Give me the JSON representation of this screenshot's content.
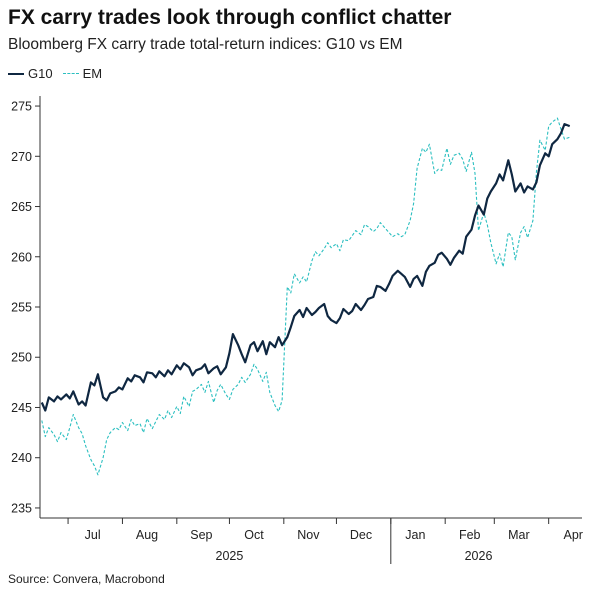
{
  "title": "FX carry trades look through conflict chatter",
  "subtitle": "Bloomberg FX carry trade total-return indices: G10 vs EM",
  "source": "Source: Convera, Macrobond",
  "colors": {
    "g10": "#0f2741",
    "em": "#2bbfc0",
    "axis": "#333333"
  },
  "chart_data": {
    "type": "line",
    "title": "FX carry trades look through conflict chatter",
    "subtitle": "Bloomberg FX carry trade total-return indices: G10 vs EM",
    "ylim": [
      234,
      276
    ],
    "yticks": [
      235,
      240,
      245,
      250,
      255,
      260,
      265,
      270,
      275
    ],
    "xlim": [
      "2025-06-15",
      "2026-04-20"
    ],
    "month_ticks": [
      {
        "date": "2025-07-15",
        "label": "Jul"
      },
      {
        "date": "2025-08-15",
        "label": "Aug"
      },
      {
        "date": "2025-09-15",
        "label": "Sep"
      },
      {
        "date": "2025-10-15",
        "label": "Oct"
      },
      {
        "date": "2025-11-15",
        "label": "Nov"
      },
      {
        "date": "2025-12-15",
        "label": "Dec"
      },
      {
        "date": "2026-01-15",
        "label": "Jan"
      },
      {
        "date": "2026-02-15",
        "label": "Feb"
      },
      {
        "date": "2026-03-15",
        "label": "Mar"
      },
      {
        "date": "2026-04-15",
        "label": "Apr"
      }
    ],
    "month_dividers": [
      "2025-07-01",
      "2025-08-01",
      "2025-09-01",
      "2025-10-01",
      "2025-11-01",
      "2025-12-01",
      "2026-01-01",
      "2026-02-01",
      "2026-03-01",
      "2026-04-01"
    ],
    "year_labels": [
      {
        "date": "2025-10-01",
        "label": "2025"
      },
      {
        "date": "2026-02-20",
        "label": "2026"
      }
    ],
    "grid": false,
    "legend": "top-left",
    "series": [
      {
        "name": "G10",
        "style": "solid",
        "points": [
          [
            "2025-06-16",
            245.5
          ],
          [
            "2025-06-18",
            244.7
          ],
          [
            "2025-06-20",
            246.0
          ],
          [
            "2025-06-23",
            245.6
          ],
          [
            "2025-06-25",
            246.1
          ],
          [
            "2025-06-27",
            245.8
          ],
          [
            "2025-06-30",
            246.3
          ],
          [
            "2025-07-02",
            245.9
          ],
          [
            "2025-07-04",
            246.6
          ],
          [
            "2025-07-07",
            245.3
          ],
          [
            "2025-07-09",
            245.6
          ],
          [
            "2025-07-11",
            245.2
          ],
          [
            "2025-07-14",
            247.5
          ],
          [
            "2025-07-16",
            247.2
          ],
          [
            "2025-07-18",
            248.3
          ],
          [
            "2025-07-21",
            246.0
          ],
          [
            "2025-07-23",
            245.7
          ],
          [
            "2025-07-25",
            246.4
          ],
          [
            "2025-07-28",
            246.6
          ],
          [
            "2025-07-30",
            247.0
          ],
          [
            "2025-08-01",
            246.8
          ],
          [
            "2025-08-04",
            247.9
          ],
          [
            "2025-08-06",
            247.6
          ],
          [
            "2025-08-08",
            248.2
          ],
          [
            "2025-08-11",
            248.0
          ],
          [
            "2025-08-13",
            247.5
          ],
          [
            "2025-08-15",
            248.5
          ],
          [
            "2025-08-18",
            248.4
          ],
          [
            "2025-08-20",
            248.0
          ],
          [
            "2025-08-22",
            248.6
          ],
          [
            "2025-08-25",
            248.1
          ],
          [
            "2025-08-27",
            248.7
          ],
          [
            "2025-08-29",
            248.3
          ],
          [
            "2025-09-01",
            249.2
          ],
          [
            "2025-09-03",
            248.8
          ],
          [
            "2025-09-05",
            249.4
          ],
          [
            "2025-09-08",
            249.0
          ],
          [
            "2025-09-10",
            248.2
          ],
          [
            "2025-09-12",
            248.7
          ],
          [
            "2025-09-15",
            248.9
          ],
          [
            "2025-09-17",
            249.3
          ],
          [
            "2025-09-19",
            248.4
          ],
          [
            "2025-09-22",
            248.9
          ],
          [
            "2025-09-24",
            249.1
          ],
          [
            "2025-09-26",
            248.3
          ],
          [
            "2025-09-29",
            249.0
          ],
          [
            "2025-10-01",
            250.4
          ],
          [
            "2025-10-03",
            252.3
          ],
          [
            "2025-10-06",
            251.2
          ],
          [
            "2025-10-08",
            250.3
          ],
          [
            "2025-10-10",
            249.5
          ],
          [
            "2025-10-13",
            251.2
          ],
          [
            "2025-10-15",
            251.5
          ],
          [
            "2025-10-17",
            250.6
          ],
          [
            "2025-10-20",
            251.6
          ],
          [
            "2025-10-22",
            250.3
          ],
          [
            "2025-10-24",
            251.5
          ],
          [
            "2025-10-27",
            251.0
          ],
          [
            "2025-10-29",
            252.0
          ],
          [
            "2025-10-31",
            251.2
          ],
          [
            "2025-11-03",
            252.0
          ],
          [
            "2025-11-05",
            253.0
          ],
          [
            "2025-11-07",
            254.1
          ],
          [
            "2025-11-10",
            254.7
          ],
          [
            "2025-11-12",
            254.0
          ],
          [
            "2025-11-14",
            254.9
          ],
          [
            "2025-11-17",
            254.2
          ],
          [
            "2025-11-19",
            254.5
          ],
          [
            "2025-11-21",
            254.9
          ],
          [
            "2025-11-24",
            255.3
          ],
          [
            "2025-11-26",
            254.1
          ],
          [
            "2025-11-28",
            253.7
          ],
          [
            "2025-12-01",
            253.4
          ],
          [
            "2025-12-03",
            253.9
          ],
          [
            "2025-12-05",
            254.8
          ],
          [
            "2025-12-08",
            254.3
          ],
          [
            "2025-12-10",
            254.6
          ],
          [
            "2025-12-12",
            255.3
          ],
          [
            "2025-12-15",
            254.7
          ],
          [
            "2025-12-17",
            255.2
          ],
          [
            "2025-12-19",
            255.8
          ],
          [
            "2025-12-22",
            256.0
          ],
          [
            "2025-12-24",
            257.1
          ],
          [
            "2025-12-26",
            257.0
          ],
          [
            "2025-12-29",
            256.6
          ],
          [
            "2025-12-31",
            257.3
          ],
          [
            "2026-01-02",
            258.1
          ],
          [
            "2026-01-05",
            258.6
          ],
          [
            "2026-01-07",
            258.3
          ],
          [
            "2026-01-09",
            258.0
          ],
          [
            "2026-01-12",
            257.0
          ],
          [
            "2026-01-14",
            257.8
          ],
          [
            "2026-01-16",
            258.1
          ],
          [
            "2026-01-19",
            257.1
          ],
          [
            "2026-01-21",
            258.5
          ],
          [
            "2026-01-23",
            259.1
          ],
          [
            "2026-01-26",
            259.4
          ],
          [
            "2026-01-28",
            260.2
          ],
          [
            "2026-01-30",
            260.4
          ],
          [
            "2026-02-02",
            259.8
          ],
          [
            "2026-02-04",
            259.2
          ],
          [
            "2026-02-06",
            259.9
          ],
          [
            "2026-02-09",
            260.6
          ],
          [
            "2026-02-11",
            260.3
          ],
          [
            "2026-02-13",
            262.0
          ],
          [
            "2026-02-16",
            262.7
          ],
          [
            "2026-02-18",
            264.1
          ],
          [
            "2026-02-20",
            265.1
          ],
          [
            "2026-02-23",
            264.2
          ],
          [
            "2026-02-25",
            265.8
          ],
          [
            "2026-02-27",
            266.5
          ],
          [
            "2026-03-02",
            267.3
          ],
          [
            "2026-03-04",
            268.2
          ],
          [
            "2026-03-06",
            267.6
          ],
          [
            "2026-03-09",
            269.6
          ],
          [
            "2026-03-11",
            268.2
          ],
          [
            "2026-03-13",
            266.5
          ],
          [
            "2026-03-16",
            267.3
          ],
          [
            "2026-03-18",
            266.4
          ],
          [
            "2026-03-20",
            267.0
          ],
          [
            "2026-03-23",
            266.7
          ],
          [
            "2026-03-25",
            267.4
          ],
          [
            "2026-03-27",
            269.1
          ],
          [
            "2026-03-30",
            270.3
          ],
          [
            "2026-04-01",
            270.0
          ],
          [
            "2026-04-03",
            271.2
          ],
          [
            "2026-04-06",
            271.7
          ],
          [
            "2026-04-08",
            272.3
          ],
          [
            "2026-04-10",
            273.2
          ],
          [
            "2026-04-13",
            273.0
          ]
        ]
      },
      {
        "name": "EM",
        "style": "dashed",
        "points": [
          [
            "2025-06-16",
            243.7
          ],
          [
            "2025-06-18",
            242.1
          ],
          [
            "2025-06-20",
            243.0
          ],
          [
            "2025-06-23",
            242.3
          ],
          [
            "2025-06-25",
            241.6
          ],
          [
            "2025-06-27",
            242.5
          ],
          [
            "2025-06-30",
            241.8
          ],
          [
            "2025-07-02",
            243.0
          ],
          [
            "2025-07-04",
            244.3
          ],
          [
            "2025-07-07",
            243.0
          ],
          [
            "2025-07-09",
            242.4
          ],
          [
            "2025-07-11",
            241.2
          ],
          [
            "2025-07-14",
            239.8
          ],
          [
            "2025-07-16",
            239.2
          ],
          [
            "2025-07-18",
            238.3
          ],
          [
            "2025-07-21",
            240.0
          ],
          [
            "2025-07-23",
            241.8
          ],
          [
            "2025-07-25",
            242.5
          ],
          [
            "2025-07-28",
            243.0
          ],
          [
            "2025-07-30",
            242.8
          ],
          [
            "2025-08-01",
            243.5
          ],
          [
            "2025-08-04",
            242.7
          ],
          [
            "2025-08-06",
            243.8
          ],
          [
            "2025-08-08",
            243.2
          ],
          [
            "2025-08-11",
            243.4
          ],
          [
            "2025-08-13",
            242.5
          ],
          [
            "2025-08-15",
            243.9
          ],
          [
            "2025-08-18",
            242.9
          ],
          [
            "2025-08-20",
            243.6
          ],
          [
            "2025-08-22",
            244.3
          ],
          [
            "2025-08-25",
            243.8
          ],
          [
            "2025-08-27",
            244.7
          ],
          [
            "2025-08-29",
            244.0
          ],
          [
            "2025-09-01",
            245.1
          ],
          [
            "2025-09-03",
            244.4
          ],
          [
            "2025-09-05",
            246.1
          ],
          [
            "2025-09-08",
            245.1
          ],
          [
            "2025-09-10",
            246.6
          ],
          [
            "2025-09-12",
            246.8
          ],
          [
            "2025-09-15",
            247.3
          ],
          [
            "2025-09-17",
            246.5
          ],
          [
            "2025-09-19",
            247.6
          ],
          [
            "2025-09-22",
            245.5
          ],
          [
            "2025-09-24",
            246.7
          ],
          [
            "2025-09-26",
            247.3
          ],
          [
            "2025-09-29",
            246.3
          ],
          [
            "2025-10-01",
            245.8
          ],
          [
            "2025-10-03",
            246.8
          ],
          [
            "2025-10-06",
            247.3
          ],
          [
            "2025-10-08",
            248.0
          ],
          [
            "2025-10-10",
            247.5
          ],
          [
            "2025-10-13",
            248.3
          ],
          [
            "2025-10-15",
            249.3
          ],
          [
            "2025-10-17",
            248.8
          ],
          [
            "2025-10-20",
            247.6
          ],
          [
            "2025-10-22",
            248.5
          ],
          [
            "2025-10-24",
            246.5
          ],
          [
            "2025-10-27",
            245.2
          ],
          [
            "2025-10-29",
            244.6
          ],
          [
            "2025-10-31",
            245.7
          ],
          [
            "2025-11-03",
            257.0
          ],
          [
            "2025-11-05",
            256.4
          ],
          [
            "2025-11-07",
            258.3
          ],
          [
            "2025-11-10",
            257.4
          ],
          [
            "2025-11-12",
            258.0
          ],
          [
            "2025-11-14",
            257.5
          ],
          [
            "2025-11-17",
            259.6
          ],
          [
            "2025-11-19",
            260.5
          ],
          [
            "2025-11-21",
            260.1
          ],
          [
            "2025-11-24",
            260.8
          ],
          [
            "2025-11-26",
            261.4
          ],
          [
            "2025-11-28",
            260.9
          ],
          [
            "2025-12-01",
            261.3
          ],
          [
            "2025-12-03",
            260.6
          ],
          [
            "2025-12-05",
            261.7
          ],
          [
            "2025-12-08",
            261.6
          ],
          [
            "2025-12-10",
            262.1
          ],
          [
            "2025-12-12",
            262.6
          ],
          [
            "2025-12-15",
            262.2
          ],
          [
            "2025-12-17",
            263.2
          ],
          [
            "2025-12-19",
            263.0
          ],
          [
            "2025-12-22",
            262.5
          ],
          [
            "2025-12-24",
            262.8
          ],
          [
            "2025-12-26",
            263.4
          ],
          [
            "2025-12-29",
            262.8
          ],
          [
            "2025-12-31",
            262.4
          ],
          [
            "2026-01-02",
            262.0
          ],
          [
            "2026-01-05",
            262.3
          ],
          [
            "2026-01-07",
            262.0
          ],
          [
            "2026-01-09",
            262.2
          ],
          [
            "2026-01-12",
            263.6
          ],
          [
            "2026-01-14",
            265.3
          ],
          [
            "2026-01-16",
            268.8
          ],
          [
            "2026-01-19",
            270.8
          ],
          [
            "2026-01-21",
            270.4
          ],
          [
            "2026-01-23",
            271.2
          ],
          [
            "2026-01-26",
            268.3
          ],
          [
            "2026-01-28",
            268.7
          ],
          [
            "2026-01-30",
            268.6
          ],
          [
            "2026-02-02",
            270.8
          ],
          [
            "2026-02-04",
            269.2
          ],
          [
            "2026-02-06",
            270.1
          ],
          [
            "2026-02-09",
            270.3
          ],
          [
            "2026-02-11",
            269.7
          ],
          [
            "2026-02-13",
            268.5
          ],
          [
            "2026-02-16",
            270.4
          ],
          [
            "2026-02-18",
            268.3
          ],
          [
            "2026-02-20",
            262.6
          ],
          [
            "2026-02-23",
            264.4
          ],
          [
            "2026-02-25",
            263.2
          ],
          [
            "2026-02-27",
            261.4
          ],
          [
            "2026-03-02",
            259.3
          ],
          [
            "2026-03-04",
            260.3
          ],
          [
            "2026-03-06",
            259.0
          ],
          [
            "2026-03-09",
            262.4
          ],
          [
            "2026-03-11",
            262.0
          ],
          [
            "2026-03-13",
            259.7
          ],
          [
            "2026-03-16",
            262.4
          ],
          [
            "2026-03-18",
            263.0
          ],
          [
            "2026-03-20",
            261.9
          ],
          [
            "2026-03-23",
            263.6
          ],
          [
            "2026-03-25",
            268.4
          ],
          [
            "2026-03-27",
            271.6
          ],
          [
            "2026-03-30",
            270.6
          ],
          [
            "2026-04-01",
            273.0
          ],
          [
            "2026-04-03",
            273.4
          ],
          [
            "2026-04-06",
            273.8
          ],
          [
            "2026-04-08",
            272.7
          ],
          [
            "2026-04-10",
            271.7
          ],
          [
            "2026-04-13",
            271.9
          ]
        ]
      }
    ]
  }
}
